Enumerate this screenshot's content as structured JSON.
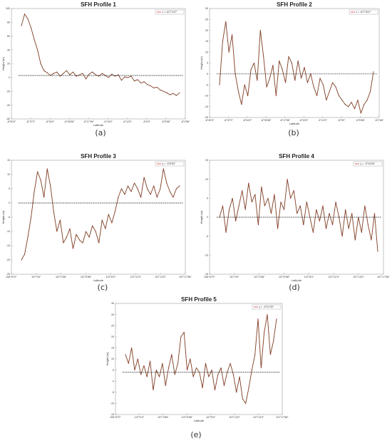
{
  "chart_data": [
    {
      "type": "line",
      "title": "SFH Profile 1",
      "caption": "(a)",
      "xlabel": "Latitude",
      "ylabel": "Height (m)",
      "xticks": [
        "-6°50'0\"",
        "-6°37'0\"",
        "-6°34'0\"",
        "-6°30'56\"",
        "-6°17'56\"",
        "-6°15'0\"",
        "-6°12'0\"",
        "-6°9'0\"",
        "-6°5'56\"",
        "-6°2'56\""
      ],
      "yticks": [
        "-60",
        "-40",
        "-20",
        "0",
        "20",
        "40",
        "60",
        "80",
        "100"
      ],
      "ylim": [
        -60,
        100
      ],
      "reference": 3,
      "legend": "x = 107°3'47\"",
      "legend_position": "top-right",
      "grid": false,
      "series": [
        {
          "values": [
            75,
            92,
            85,
            72,
            55,
            40,
            20,
            10,
            7,
            3,
            6,
            8,
            2,
            6,
            10,
            4,
            8,
            2,
            4,
            6,
            -2,
            5,
            8,
            4,
            2,
            6,
            3,
            0,
            5,
            2,
            4,
            -4,
            1,
            0,
            2,
            -5,
            -3,
            -8,
            -6,
            -10,
            -12,
            -15,
            -14,
            -18,
            -20,
            -22,
            -25,
            -23,
            -26,
            -22
          ]
        }
      ]
    },
    {
      "type": "line",
      "title": "SFH Profile 2",
      "caption": "(b)",
      "xlabel": "Latitude",
      "ylabel": "Height (m)",
      "xticks": [
        "-6°40'0\"",
        "-6°37'0\"",
        "-6°34'0\"",
        "-6°30'56\"",
        "-6°17'56\"",
        "-6°15'0\"",
        "-6°12'0\"",
        "-6°9'0\"",
        "-6°5'56\"",
        "-6°2'56\""
      ],
      "yticks": [
        "-20",
        "-15",
        "-10",
        "-5",
        "0",
        "5",
        "10",
        "15",
        "20",
        "25",
        "30"
      ],
      "ylim": [
        -20,
        30
      ],
      "reference": 0,
      "legend": "x = 107°8'47\"",
      "legend_position": "top-right",
      "grid": false,
      "series": [
        {
          "values": [
            -5,
            15,
            24,
            10,
            18,
            0,
            -8,
            -14,
            -5,
            -10,
            2,
            5,
            -3,
            20,
            8,
            -6,
            -2,
            4,
            -10,
            6,
            2,
            -4,
            8,
            5,
            -3,
            6,
            -2,
            3,
            -4,
            0,
            -6,
            -10,
            -2,
            -5,
            -12,
            -8,
            -4,
            -6,
            -10,
            -12,
            -14,
            -15,
            -13,
            -16,
            -12,
            -18,
            -14,
            -12,
            -8,
            1
          ]
        }
      ]
    },
    {
      "type": "line",
      "title": "SFH Profile 3",
      "caption": "(c)",
      "xlabel": "Latitude",
      "ylabel": "Height (m)",
      "xticks": [
        "106°57'0\"",
        "107°0'0\"",
        "107°2'58\"",
        "107°5'58\"",
        "107°8'0\"",
        "107°12'0\"",
        "107°13'0\"",
        "107°17'58\""
      ],
      "yticks": [
        "-25",
        "-20",
        "-15",
        "-10",
        "-5",
        "0",
        "5",
        "10",
        "15"
      ],
      "ylim": [
        -25,
        15
      ],
      "reference": 0,
      "legend": "y = -6°8'50\"",
      "legend_position": "top-right",
      "grid": false,
      "series": [
        {
          "values": [
            -20,
            -18,
            -12,
            -5,
            4,
            11,
            8,
            2,
            12,
            6,
            -3,
            -10,
            -6,
            -14,
            -12,
            -9,
            -16,
            -11,
            -13,
            -14,
            -10,
            -12,
            -8,
            -10,
            -14,
            -6,
            -9,
            -4,
            -7,
            -3,
            2,
            5,
            3,
            6,
            4,
            7,
            5,
            2,
            9,
            5,
            3,
            6,
            2,
            5,
            12,
            7,
            4,
            2,
            5,
            6
          ]
        }
      ]
    },
    {
      "type": "line",
      "title": "SFH Profile 4",
      "caption": "(d)",
      "xlabel": "Latitude",
      "ylabel": "Height (m)",
      "xticks": [
        "106°57'0\"",
        "107°0'0\"",
        "107°2'58\"",
        "107°5'58\"",
        "107°8'0\"",
        "107°12'0\"",
        "107°13'0\"",
        "107°17'58\""
      ],
      "yticks": [
        "-15",
        "-10",
        "-5",
        "0",
        "5",
        "10",
        "15"
      ],
      "ylim": [
        -15,
        15
      ],
      "reference": 0,
      "legend": "y = -6°15'55\"",
      "legend_position": "top-right",
      "grid": false,
      "series": [
        {
          "values": [
            0,
            3,
            -4,
            2,
            5,
            -1,
            3,
            7,
            2,
            9,
            4,
            6,
            -2,
            8,
            3,
            5,
            1,
            6,
            -3,
            4,
            2,
            10,
            5,
            7,
            1,
            3,
            -2,
            4,
            0,
            -4,
            2,
            -1,
            3,
            -3,
            1,
            -2,
            4,
            0,
            -5,
            2,
            -3,
            1,
            -6,
            0,
            -4,
            3,
            -2,
            -6,
            1,
            -9
          ]
        }
      ]
    },
    {
      "type": "line",
      "title": "SFH Profile 5",
      "caption": "(e)",
      "xlabel": "Latitude",
      "ylabel": "Height (m)",
      "xticks": [
        "106°57'0\"",
        "107°0'0\"",
        "107°2'58\"",
        "107°5'58\"",
        "107°8'0\"",
        "107°12'0\"",
        "107°13'0\"",
        "107°17'58\""
      ],
      "yticks": [
        "-15",
        "-10",
        "-5",
        "0",
        "5",
        "10",
        "15",
        "20",
        "25",
        "30",
        "35"
      ],
      "ylim": [
        -15,
        35
      ],
      "reference": 4,
      "legend": "y = -6°21'59\"",
      "legend_position": "top-right",
      "grid": false,
      "series": [
        {
          "values": [
            12,
            8,
            15,
            5,
            10,
            3,
            7,
            2,
            9,
            -4,
            5,
            2,
            8,
            -2,
            6,
            12,
            3,
            8,
            20,
            22,
            5,
            10,
            2,
            6,
            4,
            -3,
            8,
            2,
            5,
            -4,
            3,
            6,
            -2,
            4,
            8,
            3,
            -5,
            2,
            -8,
            -10,
            -3,
            5,
            12,
            28,
            6,
            22,
            30,
            12,
            18,
            28
          ]
        }
      ]
    }
  ]
}
